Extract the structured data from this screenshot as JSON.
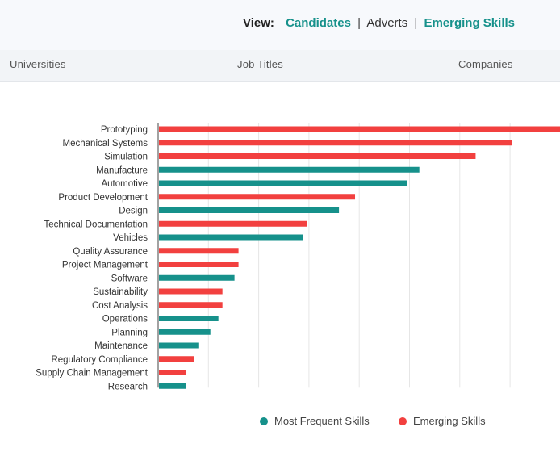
{
  "view_bar": {
    "label": "View:",
    "options": [
      {
        "label": "Candidates",
        "active": true
      },
      {
        "label": "Adverts",
        "active": false
      },
      {
        "label": "Emerging Skills",
        "active": true
      }
    ],
    "separator": "|"
  },
  "tabs": [
    "Universities",
    "Job Titles",
    "Companies"
  ],
  "colors": {
    "teal": "#16918b",
    "red": "#f2403f",
    "grid": "#e6e6e6"
  },
  "chart_data": {
    "type": "bar",
    "orientation": "horizontal",
    "categories": [
      "Prototyping",
      "Mechanical Systems",
      "Simulation",
      "Manufacture",
      "Automotive",
      "Product Development",
      "Design",
      "Technical Documentation",
      "Vehicles",
      "Quality Assurance",
      "Project Management",
      "Software",
      "Sustainability",
      "Cost Analysis",
      "Operations",
      "Planning",
      "Maintenance",
      "Regulatory Compliance",
      "Supply Chain Management",
      "Research"
    ],
    "values": [
      100,
      88,
      79,
      65,
      62,
      49,
      45,
      37,
      36,
      20,
      20,
      19,
      16,
      16,
      15,
      13,
      10,
      9,
      7,
      7
    ],
    "series_of_bar": [
      "Emerging Skills",
      "Emerging Skills",
      "Emerging Skills",
      "Most Frequent Skills",
      "Most Frequent Skills",
      "Emerging Skills",
      "Most Frequent Skills",
      "Emerging Skills",
      "Most Frequent Skills",
      "Emerging Skills",
      "Emerging Skills",
      "Most Frequent Skills",
      "Emerging Skills",
      "Emerging Skills",
      "Most Frequent Skills",
      "Most Frequent Skills",
      "Most Frequent Skills",
      "Emerging Skills",
      "Emerging Skills",
      "Most Frequent Skills"
    ],
    "series": [
      {
        "name": "Most Frequent Skills",
        "color": "#16918b"
      },
      {
        "name": "Emerging Skills",
        "color": "#f2403f"
      }
    ],
    "xlim": [
      0,
      100
    ],
    "grid": true,
    "legend_placement": "bottom"
  }
}
